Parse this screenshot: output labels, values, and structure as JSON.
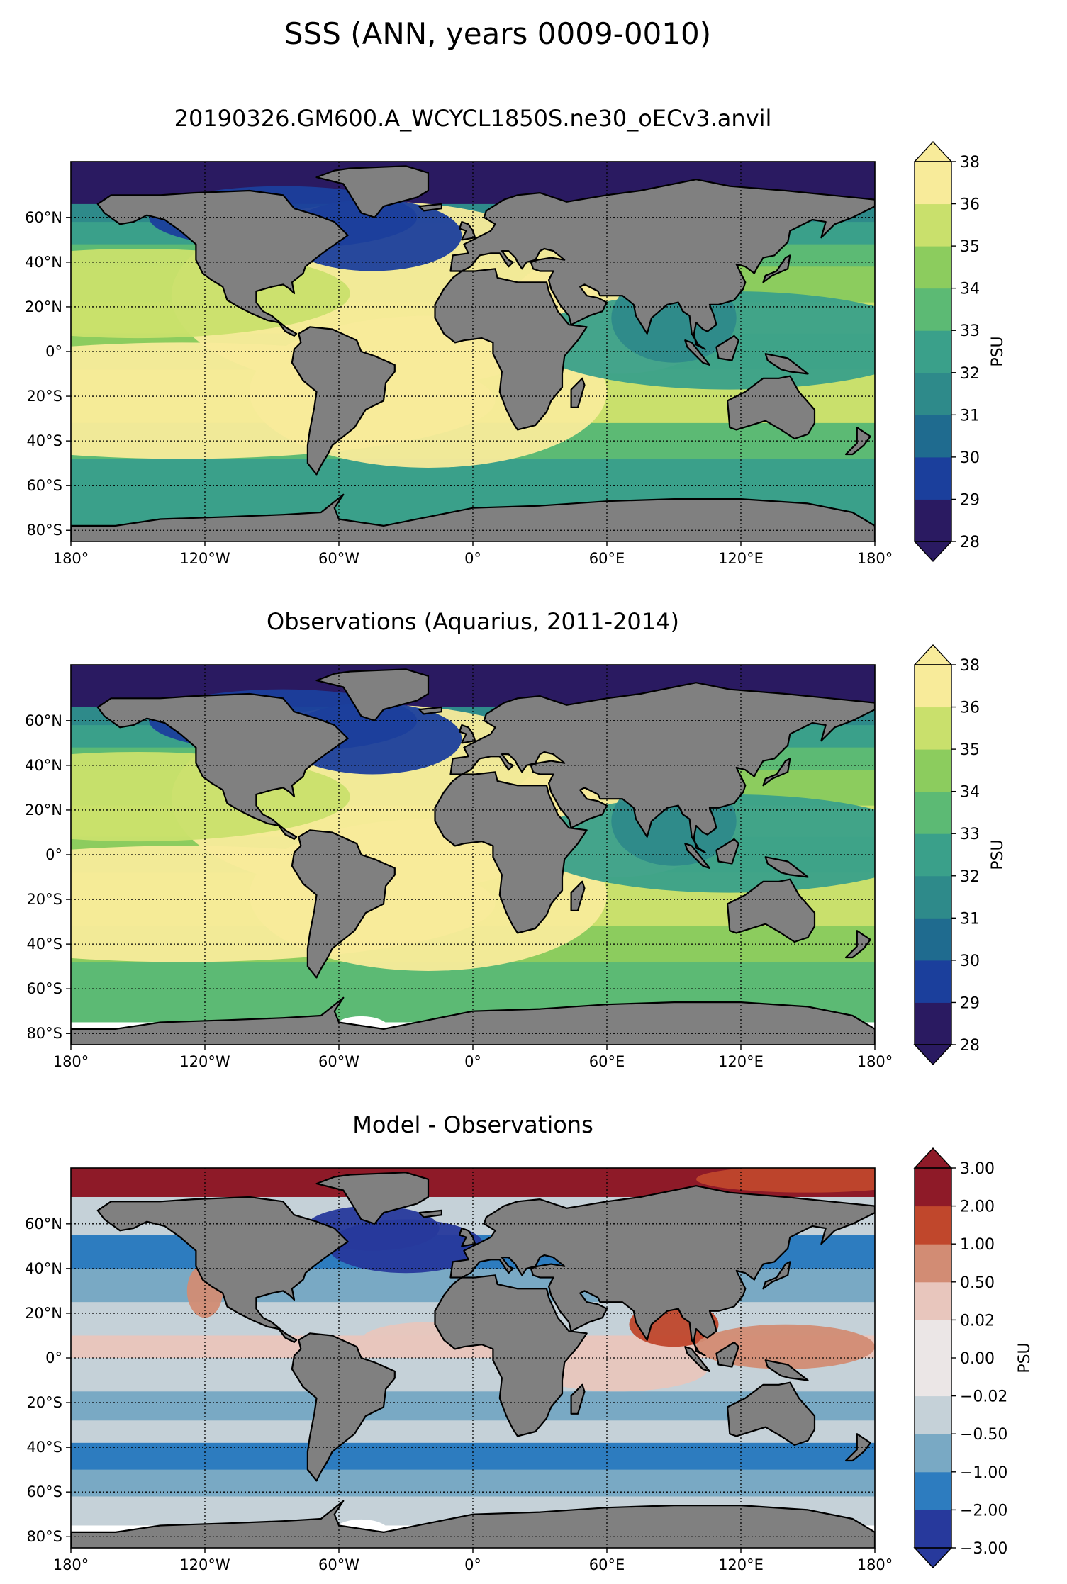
{
  "figure": {
    "title": "SSS (ANN, years 0009-0010)"
  },
  "axes": {
    "lat_ticks": [
      "60°N",
      "40°N",
      "20°N",
      "0°",
      "20°S",
      "40°S",
      "60°S",
      "80°S"
    ],
    "lat_values": [
      60,
      40,
      20,
      0,
      -20,
      -40,
      -60,
      -80
    ],
    "lon_ticks": [
      "180°",
      "120°W",
      "60°W",
      "0°",
      "60°E",
      "120°E",
      "180°"
    ],
    "lon_values": [
      -180,
      -120,
      -60,
      0,
      60,
      120,
      180
    ],
    "lat_range": [
      -85,
      85
    ],
    "lon_range": [
      -180,
      180
    ]
  },
  "panels": [
    {
      "title": "20190326.GM600.A_WCYCL1850S.ne30_oECv3.anvil",
      "colorbar": {
        "label": "PSU",
        "levels": [
          "28",
          "29",
          "30",
          "31",
          "32",
          "33",
          "34",
          "35",
          "36",
          "38"
        ],
        "colors": [
          "#2a1a61",
          "#1b3f9c",
          "#1f6b8f",
          "#2e8a8a",
          "#3aa08a",
          "#5cba74",
          "#8ccc5e",
          "#c9e06c",
          "#f8eb9a"
        ],
        "extend": "both"
      }
    },
    {
      "title": "Observations (Aquarius, 2011-2014)",
      "colorbar": {
        "label": "PSU",
        "levels": [
          "28",
          "29",
          "30",
          "31",
          "32",
          "33",
          "34",
          "35",
          "36",
          "38"
        ],
        "colors": [
          "#2a1a61",
          "#1b3f9c",
          "#1f6b8f",
          "#2e8a8a",
          "#3aa08a",
          "#5cba74",
          "#8ccc5e",
          "#c9e06c",
          "#f8eb9a"
        ],
        "extend": "both"
      }
    },
    {
      "title": "Model - Observations",
      "colorbar": {
        "label": "PSU",
        "levels": [
          "−3.00",
          "−2.00",
          "−1.00",
          "−0.50",
          "−0.02",
          "0.00",
          "0.02",
          "0.50",
          "1.00",
          "2.00",
          "3.00"
        ],
        "colors": [
          "#27399c",
          "#2d7cbf",
          "#79a9c4",
          "#c5d1d8",
          "#ebe6e6",
          "#ebe6e6",
          "#e8c6bd",
          "#d28c74",
          "#c0472c",
          "#8e1a28"
        ],
        "extend": "both"
      }
    }
  ],
  "chart_data": [
    {
      "type": "heatmap",
      "title": "20190326.GM600.A_WCYCL1850S.ne30_oECv3.anvil",
      "variable": "SSS",
      "unit": "PSU",
      "legend_placement": "right",
      "grid": true,
      "contour_levels": [
        28,
        29,
        30,
        31,
        32,
        33,
        34,
        35,
        36,
        38
      ],
      "regional_values": {
        "north_atlantic_subtropics": 37,
        "south_atlantic_subtropics": 37,
        "arabian_sea": 36.5,
        "mediterranean": 38,
        "equatorial_pacific": 34.5,
        "subtropical_pacific": 35.5,
        "southern_ocean": 33.8,
        "north_pacific": 33.0,
        "arctic": 29.5,
        "hudson_bay": 28.5,
        "baltic": 28.5,
        "bay_of_bengal": 32.5
      }
    },
    {
      "type": "heatmap",
      "title": "Observations (Aquarius, 2011-2014)",
      "variable": "SSS",
      "unit": "PSU",
      "legend_placement": "right",
      "grid": true,
      "contour_levels": [
        28,
        29,
        30,
        31,
        32,
        33,
        34,
        35,
        36,
        38
      ],
      "regional_values": {
        "north_atlantic_subtropics": 37,
        "south_atlantic_subtropics": 36.5,
        "arabian_sea": 36.5,
        "mediterranean": 38,
        "equatorial_pacific": 34.5,
        "subtropical_pacific": 35.8,
        "southern_ocean": 34.0,
        "north_pacific": 33.0,
        "arctic": 30.0,
        "hudson_bay": 29.5,
        "baltic": 29.0,
        "bay_of_bengal": 32.5
      }
    },
    {
      "type": "heatmap",
      "title": "Model - Observations",
      "variable": "SSS difference",
      "unit": "PSU",
      "legend_placement": "right",
      "grid": true,
      "contour_levels": [
        -3.0,
        -2.0,
        -1.0,
        -0.5,
        -0.02,
        0.0,
        0.02,
        0.5,
        1.0,
        2.0,
        3.0
      ],
      "regional_values": {
        "labrador_sea": -3.0,
        "north_atlantic_subpolar": -1.5,
        "arctic_siberian_shelf": 2.5,
        "bay_of_bengal": 0.8,
        "arabian_sea": 0.3,
        "western_pacific_warm_pool": 0.6,
        "southern_ocean_40S": -1.2,
        "subtropical_bands": -0.6,
        "tropical_atlantic": 0.2,
        "california_current": 0.8
      }
    }
  ]
}
